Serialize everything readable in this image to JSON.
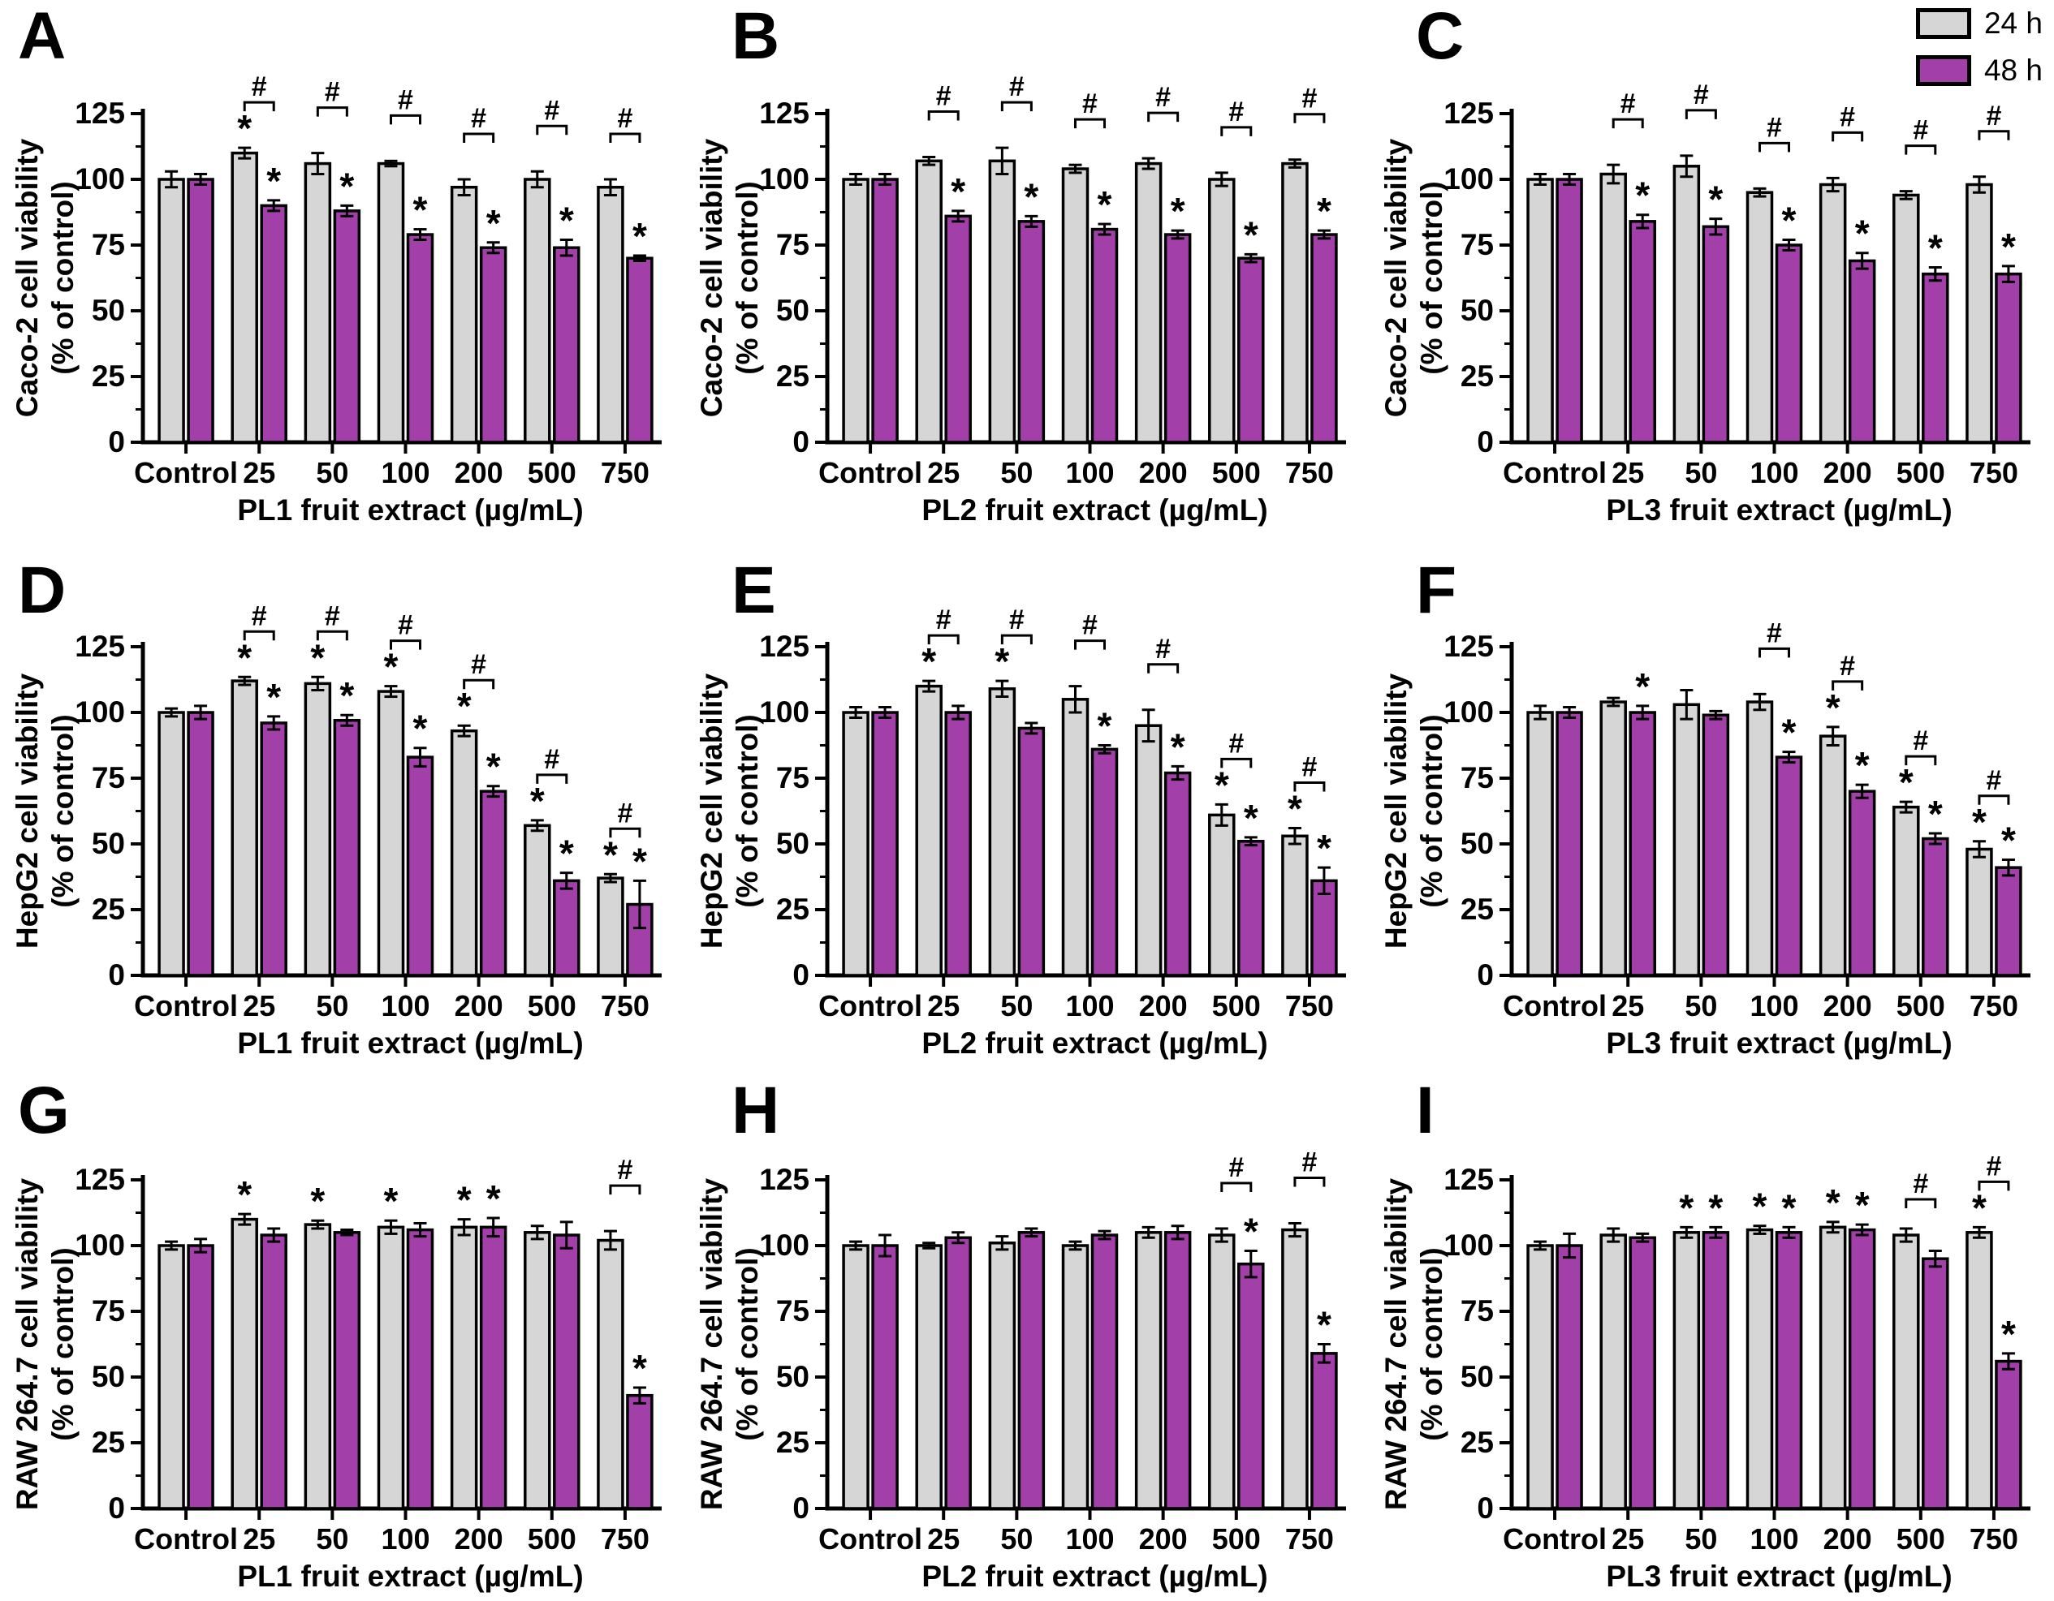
{
  "legend": {
    "items": [
      {
        "label": "24 h",
        "color": "#d6d6d6"
      },
      {
        "label": "48 h",
        "color": "#a33fa8"
      }
    ]
  },
  "colors": {
    "bar_24h": "#d6d6d6",
    "bar_48h": "#a33fa8",
    "edge": "#000000",
    "background": "#ffffff"
  },
  "axis": {
    "y_ticks": [
      0,
      25,
      50,
      75,
      100,
      125
    ],
    "y_minor_step": 12.5,
    "ylim": [
      0,
      125
    ]
  },
  "chart_data": [
    {
      "panel": "A",
      "type": "bar",
      "categories": [
        "Control",
        "25",
        "50",
        "100",
        "200",
        "500",
        "750"
      ],
      "xlabel": "PL1 fruit extract (µg/mL)",
      "ylabel_line1": "Caco-2 cell viability",
      "ylabel_line2": "(% of control)",
      "ylim": [
        0,
        125
      ],
      "series": [
        {
          "name": "24 h",
          "values": [
            100,
            110,
            106,
            106,
            97,
            100,
            97
          ],
          "errors": [
            3,
            2,
            4,
            1,
            3,
            3,
            3
          ],
          "stars": [
            0,
            1,
            0,
            0,
            0,
            0,
            0
          ]
        },
        {
          "name": "48 h",
          "values": [
            100,
            90,
            88,
            79,
            74,
            74,
            70
          ],
          "errors": [
            2,
            2,
            2,
            2,
            2,
            3,
            1
          ],
          "stars": [
            0,
            1,
            1,
            1,
            1,
            1,
            1
          ]
        }
      ],
      "hash_brackets": [
        0,
        1,
        1,
        1,
        1,
        1,
        1
      ]
    },
    {
      "panel": "B",
      "type": "bar",
      "categories": [
        "Control",
        "25",
        "50",
        "100",
        "200",
        "500",
        "750"
      ],
      "xlabel": "PL2 fruit extract (µg/mL)",
      "ylabel_line1": "Caco-2 cell viability",
      "ylabel_line2": "(% of control)",
      "ylim": [
        0,
        125
      ],
      "series": [
        {
          "name": "24 h",
          "values": [
            100,
            107,
            107,
            104,
            106,
            100,
            106
          ],
          "errors": [
            2,
            1.5,
            5,
            1.5,
            2,
            2.5,
            1.5
          ],
          "stars": [
            0,
            0,
            0,
            0,
            0,
            0,
            0
          ]
        },
        {
          "name": "48 h",
          "values": [
            100,
            86,
            84,
            81,
            79,
            70,
            79
          ],
          "errors": [
            2,
            2,
            2,
            2,
            1.5,
            1.5,
            1.5
          ],
          "stars": [
            0,
            1,
            1,
            1,
            1,
            1,
            1
          ]
        }
      ],
      "hash_brackets": [
        0,
        1,
        1,
        1,
        1,
        1,
        1
      ]
    },
    {
      "panel": "C",
      "type": "bar",
      "categories": [
        "Control",
        "25",
        "50",
        "100",
        "200",
        "500",
        "750"
      ],
      "xlabel": "PL3 fruit extract (µg/mL)",
      "ylabel_line1": "Caco-2 cell viability",
      "ylabel_line2": "(% of control)",
      "ylim": [
        0,
        125
      ],
      "series": [
        {
          "name": "24 h",
          "values": [
            100,
            102,
            105,
            95,
            98,
            94,
            98
          ],
          "errors": [
            2,
            3.5,
            4,
            1.5,
            2.5,
            1.5,
            3
          ],
          "stars": [
            0,
            0,
            0,
            0,
            0,
            0,
            0
          ]
        },
        {
          "name": "48 h",
          "values": [
            100,
            84,
            82,
            75,
            69,
            64,
            64
          ],
          "errors": [
            2,
            2.5,
            3,
            2,
            3,
            2.5,
            3
          ],
          "stars": [
            0,
            1,
            1,
            1,
            1,
            1,
            1
          ]
        }
      ],
      "hash_brackets": [
        0,
        1,
        1,
        1,
        1,
        1,
        1
      ]
    },
    {
      "panel": "D",
      "type": "bar",
      "categories": [
        "Control",
        "25",
        "50",
        "100",
        "200",
        "500",
        "750"
      ],
      "xlabel": "PL1 fruit extract (µg/mL)",
      "ylabel_line1": "HepG2 cell viability",
      "ylabel_line2": "(% of control)",
      "ylim": [
        0,
        125
      ],
      "series": [
        {
          "name": "24 h",
          "values": [
            100,
            112,
            111,
            108,
            93,
            57,
            37
          ],
          "errors": [
            1.5,
            1.5,
            2.5,
            2,
            2,
            2,
            1.5
          ],
          "stars": [
            0,
            1,
            1,
            1,
            1,
            1,
            1
          ]
        },
        {
          "name": "48 h",
          "values": [
            100,
            96,
            97,
            83,
            70,
            36,
            27
          ],
          "errors": [
            2.5,
            2.5,
            2,
            3.5,
            2,
            3,
            9
          ],
          "stars": [
            0,
            1,
            1,
            1,
            1,
            1,
            1
          ]
        }
      ],
      "hash_brackets": [
        0,
        1,
        1,
        1,
        1,
        1,
        1
      ]
    },
    {
      "panel": "E",
      "type": "bar",
      "categories": [
        "Control",
        "25",
        "50",
        "100",
        "200",
        "500",
        "750"
      ],
      "xlabel": "PL2 fruit extract (µg/mL)",
      "ylabel_line1": "HepG2 cell viability",
      "ylabel_line2": "(% of control)",
      "ylim": [
        0,
        125
      ],
      "series": [
        {
          "name": "24 h",
          "values": [
            100,
            110,
            109,
            105,
            95,
            61,
            53
          ],
          "errors": [
            2,
            2,
            3,
            5,
            6,
            4,
            3
          ],
          "stars": [
            0,
            1,
            1,
            0,
            0,
            1,
            1
          ]
        },
        {
          "name": "48 h",
          "values": [
            100,
            100,
            94,
            86,
            77,
            51,
            36
          ],
          "errors": [
            2,
            2.5,
            2,
            1.5,
            2.5,
            1.5,
            5
          ],
          "stars": [
            0,
            0,
            0,
            1,
            1,
            1,
            1
          ]
        }
      ],
      "hash_brackets": [
        0,
        1,
        1,
        1,
        1,
        1,
        1
      ]
    },
    {
      "panel": "F",
      "type": "bar",
      "categories": [
        "Control",
        "25",
        "50",
        "100",
        "200",
        "500",
        "750"
      ],
      "xlabel": "PL3 fruit extract (µg/mL)",
      "ylabel_line1": "HepG2 cell viability",
      "ylabel_line2": "(% of control)",
      "ylim": [
        0,
        125
      ],
      "series": [
        {
          "name": "24 h",
          "values": [
            100,
            104,
            103,
            104,
            91,
            64,
            48
          ],
          "errors": [
            2.5,
            1.5,
            5.5,
            3,
            3.5,
            2,
            3
          ],
          "stars": [
            0,
            0,
            0,
            0,
            1,
            1,
            1
          ]
        },
        {
          "name": "48 h",
          "values": [
            100,
            100,
            99,
            83,
            70,
            52,
            41
          ],
          "errors": [
            2,
            2.5,
            1.5,
            2,
            2.5,
            2,
            3
          ],
          "stars": [
            0,
            1,
            0,
            1,
            1,
            1,
            1
          ]
        }
      ],
      "hash_brackets": [
        0,
        0,
        0,
        1,
        1,
        1,
        1
      ]
    },
    {
      "panel": "G",
      "type": "bar",
      "categories": [
        "Control",
        "25",
        "50",
        "100",
        "200",
        "500",
        "750"
      ],
      "xlabel": "PL1 fruit extract (µg/mL)",
      "ylabel_line1": "RAW 264.7 cell viability",
      "ylabel_line2": "(% of control)",
      "ylim": [
        0,
        125
      ],
      "series": [
        {
          "name": "24 h",
          "values": [
            100,
            110,
            108,
            107,
            107,
            105,
            102
          ],
          "errors": [
            1.5,
            2,
            1.5,
            2.5,
            3,
            2.5,
            3.5
          ],
          "stars": [
            0,
            1,
            1,
            1,
            1,
            0,
            0
          ]
        },
        {
          "name": "48 h",
          "values": [
            100,
            104,
            105,
            106,
            107,
            104,
            43
          ],
          "errors": [
            2.5,
            2.5,
            1,
            2.5,
            3.5,
            5,
            3
          ],
          "stars": [
            0,
            0,
            0,
            0,
            1,
            0,
            1
          ]
        }
      ],
      "hash_brackets": [
        0,
        0,
        0,
        0,
        0,
        0,
        1
      ]
    },
    {
      "panel": "H",
      "type": "bar",
      "categories": [
        "Control",
        "25",
        "50",
        "100",
        "200",
        "500",
        "750"
      ],
      "xlabel": "PL2 fruit extract (µg/mL)",
      "ylabel_line1": "RAW 264.7 cell viability",
      "ylabel_line2": "(% of control)",
      "ylim": [
        0,
        125
      ],
      "series": [
        {
          "name": "24 h",
          "values": [
            100,
            100,
            101,
            100,
            105,
            104,
            106
          ],
          "errors": [
            1.5,
            1,
            2.5,
            1.5,
            2,
            2.5,
            2.5
          ],
          "stars": [
            0,
            0,
            0,
            0,
            0,
            0,
            0
          ]
        },
        {
          "name": "48 h",
          "values": [
            100,
            103,
            105,
            104,
            105,
            93,
            59
          ],
          "errors": [
            4,
            2,
            1.5,
            1.5,
            2.5,
            5,
            3.5
          ],
          "stars": [
            0,
            0,
            0,
            0,
            0,
            1,
            1
          ]
        }
      ],
      "hash_brackets": [
        0,
        0,
        0,
        0,
        0,
        1,
        1
      ]
    },
    {
      "panel": "I",
      "type": "bar",
      "categories": [
        "Control",
        "25",
        "50",
        "100",
        "200",
        "500",
        "750"
      ],
      "xlabel": "PL3 fruit extract (µg/mL)",
      "ylabel_line1": "RAW 264.7 cell viability",
      "ylabel_line2": "(% of control)",
      "ylim": [
        0,
        125
      ],
      "series": [
        {
          "name": "24 h",
          "values": [
            100,
            104,
            105,
            106,
            107,
            104,
            105
          ],
          "errors": [
            1.5,
            2.5,
            2,
            1.5,
            2,
            2.5,
            2
          ],
          "stars": [
            0,
            0,
            1,
            1,
            1,
            0,
            1
          ]
        },
        {
          "name": "48 h",
          "values": [
            100,
            103,
            105,
            105,
            106,
            95,
            56
          ],
          "errors": [
            4.5,
            1.5,
            2,
            2,
            2,
            3,
            3
          ],
          "stars": [
            0,
            0,
            1,
            1,
            1,
            0,
            1
          ]
        }
      ],
      "hash_brackets": [
        0,
        0,
        0,
        0,
        0,
        1,
        1
      ]
    }
  ]
}
